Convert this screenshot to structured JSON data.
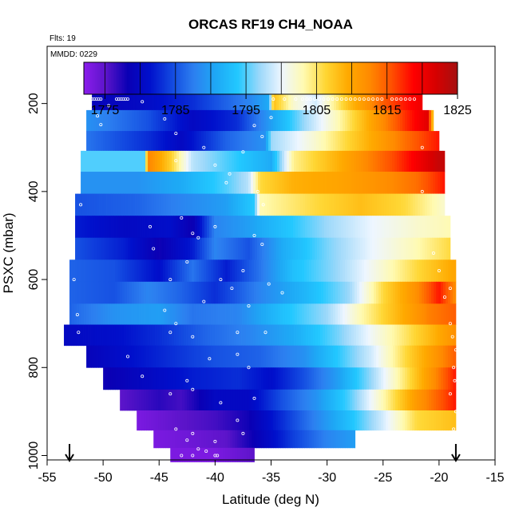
{
  "chart_data": {
    "type": "heatmap",
    "title": "ORCAS RF19 CH4_NOAA",
    "flights_label": "Flts: 19",
    "date_label": "MMDD: 0229",
    "xlabel": "Latitude (deg N)",
    "ylabel": "PSXC (mbar)",
    "xlim": [
      -55,
      -15
    ],
    "ylim": [
      1010,
      70
    ],
    "x_ticks": [
      -55,
      -50,
      -45,
      -40,
      -35,
      -30,
      -25,
      -20,
      -15
    ],
    "y_ticks": [
      200,
      400,
      600,
      800,
      1000
    ],
    "colorbar": {
      "range": [
        1772,
        1825
      ],
      "tick_values": [
        1775,
        1785,
        1795,
        1805,
        1815,
        1825
      ],
      "colors": [
        "#8b1dec",
        "#5b14c9",
        "#0a00b4",
        "#0010cc",
        "#1248e0",
        "#2c7ff0",
        "#1ea8f5",
        "#22c8ff",
        "#9cd8fa",
        "#eef6ff",
        "#fffab0",
        "#ffd633",
        "#ffaa00",
        "#ff8a00",
        "#ff5000",
        "#ff0000",
        "#d70000",
        "#a51010"
      ]
    },
    "arrow_markers_lat": [
      -53,
      -18.5
    ],
    "layers": [
      {
        "p": 190,
        "lat0": -51,
        "lat1": -21.5,
        "stops": [
          [
            -51,
            1779
          ],
          [
            -47,
            1780
          ],
          [
            -42,
            1783
          ],
          [
            -37,
            1788
          ],
          [
            -35.2,
            1791
          ],
          [
            -34.8,
            1808
          ],
          [
            -33,
            1802
          ],
          [
            -31,
            1799
          ],
          [
            -28,
            1808
          ],
          [
            -25,
            1815
          ],
          [
            -23,
            1818
          ],
          [
            -21.5,
            1820
          ]
        ]
      },
      {
        "p": 240,
        "lat0": -51.5,
        "lat1": -20.5,
        "stops": [
          [
            -51.5,
            1789
          ],
          [
            -46,
            1785
          ],
          [
            -42,
            1780
          ],
          [
            -38,
            1783
          ],
          [
            -35,
            1790
          ],
          [
            -32,
            1797
          ],
          [
            -29,
            1803
          ],
          [
            -26,
            1810
          ],
          [
            -23,
            1817
          ],
          [
            -21,
            1821
          ],
          [
            -20.5,
            1806
          ]
        ]
      },
      {
        "p": 285,
        "lat0": -51.5,
        "lat1": -20,
        "stops": [
          [
            -51.5,
            1787
          ],
          [
            -46,
            1783
          ],
          [
            -43,
            1780
          ],
          [
            -39,
            1786
          ],
          [
            -35.5,
            1789
          ],
          [
            -35,
            1797
          ],
          [
            -31,
            1802
          ],
          [
            -27,
            1808
          ],
          [
            -23,
            1814
          ],
          [
            -20,
            1818
          ]
        ]
      },
      {
        "p": 330,
        "lat0": -52,
        "lat1": -19.5,
        "stops": [
          [
            -52,
            1795
          ],
          [
            -46.3,
            1795
          ],
          [
            -46,
            1813
          ],
          [
            -44,
            1807
          ],
          [
            -42,
            1798
          ],
          [
            -39,
            1795
          ],
          [
            -35,
            1791
          ],
          [
            -33,
            1804
          ],
          [
            -29,
            1809
          ],
          [
            -24,
            1816
          ],
          [
            -20,
            1823
          ]
        ]
      },
      {
        "p": 380,
        "lat0": -52,
        "lat1": -19.5,
        "stops": [
          [
            -52,
            1789
          ],
          [
            -47,
            1789
          ],
          [
            -43,
            1791
          ],
          [
            -39,
            1795
          ],
          [
            -37,
            1798
          ],
          [
            -36,
            1806
          ],
          [
            -33,
            1809
          ],
          [
            -29,
            1810
          ],
          [
            -25,
            1812
          ],
          [
            -22,
            1814
          ],
          [
            -19.5,
            1818
          ]
        ]
      },
      {
        "p": 430,
        "lat0": -52.5,
        "lat1": -19.5,
        "stops": [
          [
            -52.5,
            1785
          ],
          [
            -47,
            1786
          ],
          [
            -43,
            1788
          ],
          [
            -39,
            1790
          ],
          [
            -36.5,
            1794
          ],
          [
            -36,
            1803
          ],
          [
            -31,
            1806
          ],
          [
            -27,
            1808
          ],
          [
            -23,
            1806
          ],
          [
            -19.5,
            1802
          ]
        ]
      },
      {
        "p": 480,
        "lat0": -52.5,
        "lat1": -19,
        "stops": [
          [
            -52.5,
            1782
          ],
          [
            -48,
            1780
          ],
          [
            -44,
            1781
          ],
          [
            -42,
            1778
          ],
          [
            -40,
            1788
          ],
          [
            -37,
            1790
          ],
          [
            -34,
            1793
          ],
          [
            -30,
            1797
          ],
          [
            -26,
            1800
          ],
          [
            -22,
            1802
          ],
          [
            -19,
            1803
          ]
        ]
      },
      {
        "p": 530,
        "lat0": -52.5,
        "lat1": -19,
        "stops": [
          [
            -52.5,
            1785
          ],
          [
            -48,
            1782
          ],
          [
            -45,
            1778
          ],
          [
            -42,
            1782
          ],
          [
            -40,
            1788
          ],
          [
            -37,
            1785
          ],
          [
            -34,
            1791
          ],
          [
            -30,
            1796
          ],
          [
            -26,
            1800
          ],
          [
            -22,
            1803
          ],
          [
            -19,
            1806
          ]
        ]
      },
      {
        "p": 580,
        "lat0": -53,
        "lat1": -18.5,
        "stops": [
          [
            -53,
            1786
          ],
          [
            -49,
            1785
          ],
          [
            -45,
            1781
          ],
          [
            -42,
            1787
          ],
          [
            -39,
            1782
          ],
          [
            -36,
            1787
          ],
          [
            -33,
            1793
          ],
          [
            -29,
            1797
          ],
          [
            -25,
            1802
          ],
          [
            -22,
            1806
          ],
          [
            -18.5,
            1810
          ]
        ]
      },
      {
        "p": 630,
        "lat0": -53,
        "lat1": -18.5,
        "stops": [
          [
            -53,
            1786
          ],
          [
            -49,
            1785
          ],
          [
            -46,
            1788
          ],
          [
            -43,
            1786
          ],
          [
            -40,
            1783
          ],
          [
            -36,
            1788
          ],
          [
            -32,
            1792
          ],
          [
            -28,
            1797
          ],
          [
            -25,
            1806
          ],
          [
            -22,
            1812
          ],
          [
            -20,
            1818
          ],
          [
            -18.5,
            1812
          ]
        ]
      },
      {
        "p": 680,
        "lat0": -53,
        "lat1": -18.5,
        "stops": [
          [
            -53,
            1786
          ],
          [
            -49,
            1789
          ],
          [
            -45,
            1790
          ],
          [
            -42,
            1787
          ],
          [
            -38,
            1788
          ],
          [
            -34,
            1793
          ],
          [
            -30,
            1797
          ],
          [
            -27,
            1803
          ],
          [
            -24,
            1808
          ],
          [
            -21,
            1813
          ],
          [
            -18.5,
            1815
          ]
        ]
      },
      {
        "p": 725,
        "lat0": -53.5,
        "lat1": -18.5,
        "stops": [
          [
            -53.5,
            1780
          ],
          [
            -49,
            1781
          ],
          [
            -45,
            1783
          ],
          [
            -41,
            1786
          ],
          [
            -37,
            1788
          ],
          [
            -33,
            1791
          ],
          [
            -29,
            1796
          ],
          [
            -25,
            1802
          ],
          [
            -21,
            1808
          ],
          [
            -18.5,
            1812
          ]
        ]
      },
      {
        "p": 775,
        "lat0": -51.5,
        "lat1": -18.5,
        "stops": [
          [
            -51.5,
            1779
          ],
          [
            -48,
            1781
          ],
          [
            -44,
            1783
          ],
          [
            -40,
            1785
          ],
          [
            -36,
            1786
          ],
          [
            -32,
            1789
          ],
          [
            -29,
            1794
          ],
          [
            -26,
            1799
          ],
          [
            -23,
            1806
          ],
          [
            -20,
            1812
          ],
          [
            -18.5,
            1815
          ]
        ]
      },
      {
        "p": 825,
        "lat0": -50,
        "lat1": -18.5,
        "stops": [
          [
            -50,
            1778
          ],
          [
            -46,
            1780
          ],
          [
            -42,
            1782
          ],
          [
            -38,
            1783
          ],
          [
            -35,
            1781
          ],
          [
            -32,
            1785
          ],
          [
            -29,
            1790
          ],
          [
            -26,
            1797
          ],
          [
            -23,
            1805
          ],
          [
            -20.5,
            1812
          ],
          [
            -18.5,
            1818
          ]
        ]
      },
      {
        "p": 875,
        "lat0": -48.5,
        "lat1": -18.5,
        "stops": [
          [
            -48.5,
            1775
          ],
          [
            -45,
            1777
          ],
          [
            -43,
            1776
          ],
          [
            -40,
            1780
          ],
          [
            -37,
            1780
          ],
          [
            -34,
            1785
          ],
          [
            -31,
            1789
          ],
          [
            -28,
            1795
          ],
          [
            -25,
            1803
          ],
          [
            -22,
            1811
          ],
          [
            -18.5,
            1818
          ]
        ]
      },
      {
        "p": 920,
        "lat0": -47,
        "lat1": -18.5,
        "stops": [
          [
            -47,
            1773
          ],
          [
            -43,
            1775
          ],
          [
            -40,
            1776
          ],
          [
            -37,
            1778
          ],
          [
            -34,
            1783
          ],
          [
            -31,
            1788
          ],
          [
            -28,
            1793
          ],
          [
            -25,
            1799
          ],
          [
            -22,
            1806
          ],
          [
            -18.5,
            1808
          ]
        ]
      },
      {
        "p": 965,
        "lat0": -45.5,
        "lat1": -27.5,
        "stops": [
          [
            -45.5,
            1773
          ],
          [
            -42,
            1774
          ],
          [
            -39,
            1775
          ],
          [
            -36,
            1779
          ],
          [
            -33,
            1784
          ],
          [
            -30,
            1788
          ],
          [
            -27.5,
            1790
          ]
        ]
      },
      {
        "p": 1000,
        "lat0": -44,
        "lat1": -36.5,
        "stops": [
          [
            -44,
            1773
          ],
          [
            -40,
            1773
          ],
          [
            -36.5,
            1775
          ]
        ]
      }
    ],
    "points": [
      [
        -51.0,
        190
      ],
      [
        -50.8,
        190
      ],
      [
        -50.6,
        190
      ],
      [
        -50.4,
        190
      ],
      [
        -50.2,
        190
      ],
      [
        -48.8,
        190
      ],
      [
        -48.6,
        190
      ],
      [
        -48.4,
        190
      ],
      [
        -48.2,
        190
      ],
      [
        -48.0,
        190
      ],
      [
        -47.8,
        190
      ],
      [
        -34.8,
        190
      ],
      [
        -33.8,
        190
      ],
      [
        -32.8,
        190
      ],
      [
        -32.2,
        190
      ],
      [
        -31.8,
        190
      ],
      [
        -31.5,
        190
      ],
      [
        -31.1,
        190
      ],
      [
        -30.7,
        190
      ],
      [
        -30.3,
        190
      ],
      [
        -29.9,
        190
      ],
      [
        -29.5,
        190
      ],
      [
        -29.1,
        190
      ],
      [
        -28.7,
        190
      ],
      [
        -28.3,
        190
      ],
      [
        -27.9,
        190
      ],
      [
        -27.5,
        190
      ],
      [
        -27.1,
        190
      ],
      [
        -26.7,
        190
      ],
      [
        -26.3,
        190
      ],
      [
        -25.9,
        190
      ],
      [
        -25.5,
        190
      ],
      [
        -25.1,
        190
      ],
      [
        -24.2,
        190
      ],
      [
        -23.8,
        190
      ],
      [
        -23.4,
        190
      ],
      [
        -23.0,
        190
      ],
      [
        -22.6,
        190
      ],
      [
        -22.2,
        190
      ],
      [
        -50.5,
        228
      ],
      [
        -50.2,
        248
      ],
      [
        -49.5,
        205
      ],
      [
        -46.5,
        196
      ],
      [
        -44.5,
        235
      ],
      [
        -43.5,
        268
      ],
      [
        -43.5,
        330
      ],
      [
        -41.0,
        300
      ],
      [
        -40.0,
        340
      ],
      [
        -39.0,
        380
      ],
      [
        -38.7,
        360
      ],
      [
        -36.5,
        250
      ],
      [
        -35.8,
        275
      ],
      [
        -35.7,
        430
      ],
      [
        -36.2,
        400
      ],
      [
        -37.5,
        310
      ],
      [
        -35.0,
        232
      ],
      [
        -52.5,
        380
      ],
      [
        -52.0,
        430
      ],
      [
        -52.8,
        540
      ],
      [
        -52.6,
        600
      ],
      [
        -52.3,
        680
      ],
      [
        -52.2,
        720
      ],
      [
        -45.8,
        480
      ],
      [
        -45.5,
        530
      ],
      [
        -44.0,
        600
      ],
      [
        -43.0,
        460
      ],
      [
        -42.5,
        560
      ],
      [
        -42.0,
        495
      ],
      [
        -41.5,
        505
      ],
      [
        -40.0,
        480
      ],
      [
        -39.5,
        600
      ],
      [
        -38.5,
        620
      ],
      [
        -38.0,
        720
      ],
      [
        -37.5,
        580
      ],
      [
        -37.0,
        660
      ],
      [
        -36.5,
        500
      ],
      [
        -35.5,
        720
      ],
      [
        -35.8,
        520
      ],
      [
        -35.2,
        610
      ],
      [
        -34.0,
        630
      ],
      [
        -44.5,
        670
      ],
      [
        -43.5,
        700
      ],
      [
        -44.0,
        720
      ],
      [
        -42.0,
        730
      ],
      [
        -41.0,
        650
      ],
      [
        -40.5,
        780
      ],
      [
        -38.0,
        770
      ],
      [
        -37.0,
        800
      ],
      [
        -47.8,
        775
      ],
      [
        -46.5,
        820
      ],
      [
        -44.0,
        860
      ],
      [
        -42.5,
        830
      ],
      [
        -42.0,
        850
      ],
      [
        -39.5,
        880
      ],
      [
        -38.0,
        920
      ],
      [
        -37.5,
        950
      ],
      [
        -36.5,
        870
      ],
      [
        -43.5,
        940
      ],
      [
        -42.0,
        950
      ],
      [
        -42.5,
        965
      ],
      [
        -40.0,
        968
      ],
      [
        -41.5,
        985
      ],
      [
        -40.8,
        990
      ],
      [
        -42.0,
        1000
      ],
      [
        -43.0,
        1000
      ],
      [
        -40.0,
        1000
      ],
      [
        -39.8,
        1000
      ],
      [
        -21.5,
        300
      ],
      [
        -21.5,
        400
      ],
      [
        -20.5,
        540
      ],
      [
        -20.0,
        580
      ],
      [
        -19.0,
        620
      ],
      [
        -19.5,
        640
      ],
      [
        -19.0,
        700
      ],
      [
        -18.8,
        730
      ],
      [
        -18.5,
        760
      ],
      [
        -18.7,
        800
      ],
      [
        -18.6,
        830
      ],
      [
        -19.0,
        860
      ],
      [
        -18.5,
        900
      ],
      [
        -18.7,
        940
      ]
    ]
  }
}
